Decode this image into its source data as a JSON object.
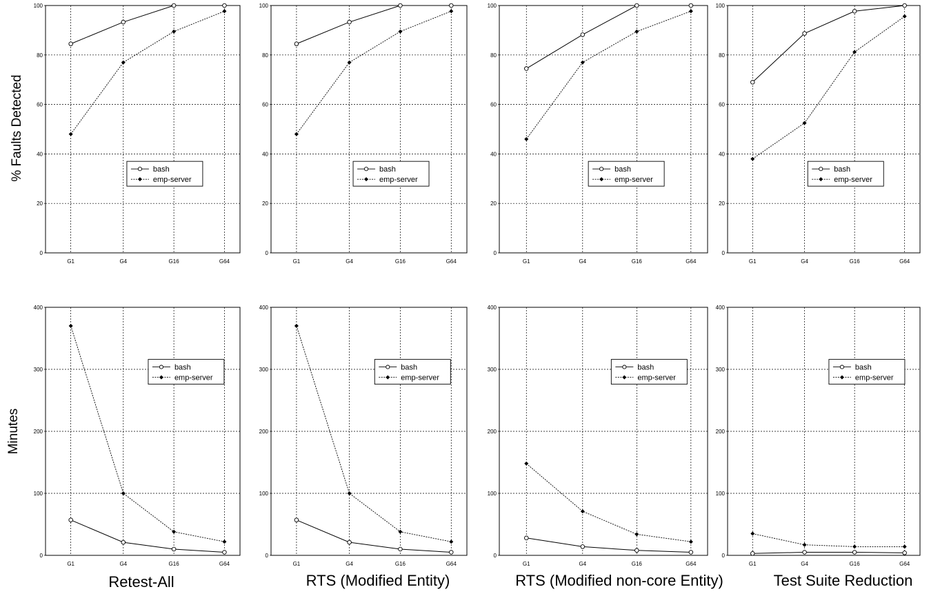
{
  "figure": {
    "row_labels": [
      "% Faults Detected",
      "Minutes"
    ],
    "column_titles": [
      "Retest-All",
      "RTS (Modified Entity)",
      "RTS (Modified non-core Entity)",
      "Test Suite Reduction"
    ]
  },
  "chart_data": [
    {
      "type": "line",
      "row": 0,
      "col": 0,
      "categories": [
        "G1",
        "G4",
        "G16",
        "G64"
      ],
      "series": [
        {
          "name": "bash",
          "values": [
            84.5,
            93.3,
            100,
            100
          ]
        },
        {
          "name": "emp-server",
          "values": [
            48,
            77,
            89.5,
            97.7
          ]
        }
      ],
      "ylim": [
        0,
        100
      ],
      "yticks": [
        0,
        20,
        40,
        60,
        80,
        100
      ],
      "ylabel": "% Faults Detected",
      "title": "",
      "grid": true,
      "legend": "center-right"
    },
    {
      "type": "line",
      "row": 0,
      "col": 1,
      "categories": [
        "G1",
        "G4",
        "G16",
        "G64"
      ],
      "series": [
        {
          "name": "bash",
          "values": [
            84.5,
            93.3,
            100,
            100
          ]
        },
        {
          "name": "emp-server",
          "values": [
            48,
            77,
            89.5,
            97.7
          ]
        }
      ],
      "ylim": [
        0,
        100
      ],
      "yticks": [
        0,
        20,
        40,
        60,
        80,
        100
      ],
      "ylabel": "",
      "title": "",
      "grid": true,
      "legend": "center-right"
    },
    {
      "type": "line",
      "row": 0,
      "col": 2,
      "categories": [
        "G1",
        "G4",
        "G16",
        "G64"
      ],
      "series": [
        {
          "name": "bash",
          "values": [
            74.5,
            88.2,
            100,
            100
          ]
        },
        {
          "name": "emp-server",
          "values": [
            46,
            77,
            89.5,
            97.7
          ]
        }
      ],
      "ylim": [
        0,
        100
      ],
      "yticks": [
        0,
        20,
        40,
        60,
        80,
        100
      ],
      "ylabel": "",
      "title": "",
      "grid": true,
      "legend": "center-right"
    },
    {
      "type": "line",
      "row": 0,
      "col": 3,
      "categories": [
        "G1",
        "G4",
        "G16",
        "G64"
      ],
      "series": [
        {
          "name": "bash",
          "values": [
            69,
            88.7,
            97.7,
            100
          ]
        },
        {
          "name": "emp-server",
          "values": [
            38,
            52.5,
            81.2,
            95.6
          ]
        }
      ],
      "ylim": [
        0,
        100
      ],
      "yticks": [
        0,
        20,
        40,
        60,
        80,
        100
      ],
      "ylabel": "",
      "title": "",
      "grid": true,
      "legend": "center-right"
    },
    {
      "type": "line",
      "row": 1,
      "col": 0,
      "categories": [
        "G1",
        "G4",
        "G16",
        "G64"
      ],
      "series": [
        {
          "name": "bash",
          "values": [
            57,
            21,
            10,
            5
          ]
        },
        {
          "name": "emp-server",
          "values": [
            370,
            100,
            38,
            22
          ]
        }
      ],
      "ylim": [
        0,
        400
      ],
      "yticks": [
        0,
        100,
        200,
        300,
        400
      ],
      "ylabel": "Minutes",
      "title": "Retest-All",
      "grid": true,
      "legend": "upper-right"
    },
    {
      "type": "line",
      "row": 1,
      "col": 1,
      "categories": [
        "G1",
        "G4",
        "G16",
        "G64"
      ],
      "series": [
        {
          "name": "bash",
          "values": [
            57,
            21,
            10,
            5
          ]
        },
        {
          "name": "emp-server",
          "values": [
            370,
            100,
            38,
            22
          ]
        }
      ],
      "ylim": [
        0,
        400
      ],
      "yticks": [
        0,
        100,
        200,
        300,
        400
      ],
      "ylabel": "",
      "title": "RTS (Modified Entity)",
      "grid": true,
      "legend": "upper-right"
    },
    {
      "type": "line",
      "row": 1,
      "col": 2,
      "categories": [
        "G1",
        "G4",
        "G16",
        "G64"
      ],
      "series": [
        {
          "name": "bash",
          "values": [
            28,
            14,
            8,
            5
          ]
        },
        {
          "name": "emp-server",
          "values": [
            148,
            71,
            34,
            22
          ]
        }
      ],
      "ylim": [
        0,
        400
      ],
      "yticks": [
        0,
        100,
        200,
        300,
        400
      ],
      "ylabel": "",
      "title": "RTS (Modified non-core Entity)",
      "grid": true,
      "legend": "upper-right"
    },
    {
      "type": "line",
      "row": 1,
      "col": 3,
      "categories": [
        "G1",
        "G4",
        "G16",
        "G64"
      ],
      "series": [
        {
          "name": "bash",
          "values": [
            3,
            5,
            5,
            4
          ]
        },
        {
          "name": "emp-server",
          "values": [
            35,
            17,
            14,
            14
          ]
        }
      ],
      "ylim": [
        0,
        400
      ],
      "yticks": [
        0,
        100,
        200,
        300,
        400
      ],
      "ylabel": "",
      "title": "Test Suite Reduction",
      "grid": true,
      "legend": "upper-right"
    }
  ]
}
